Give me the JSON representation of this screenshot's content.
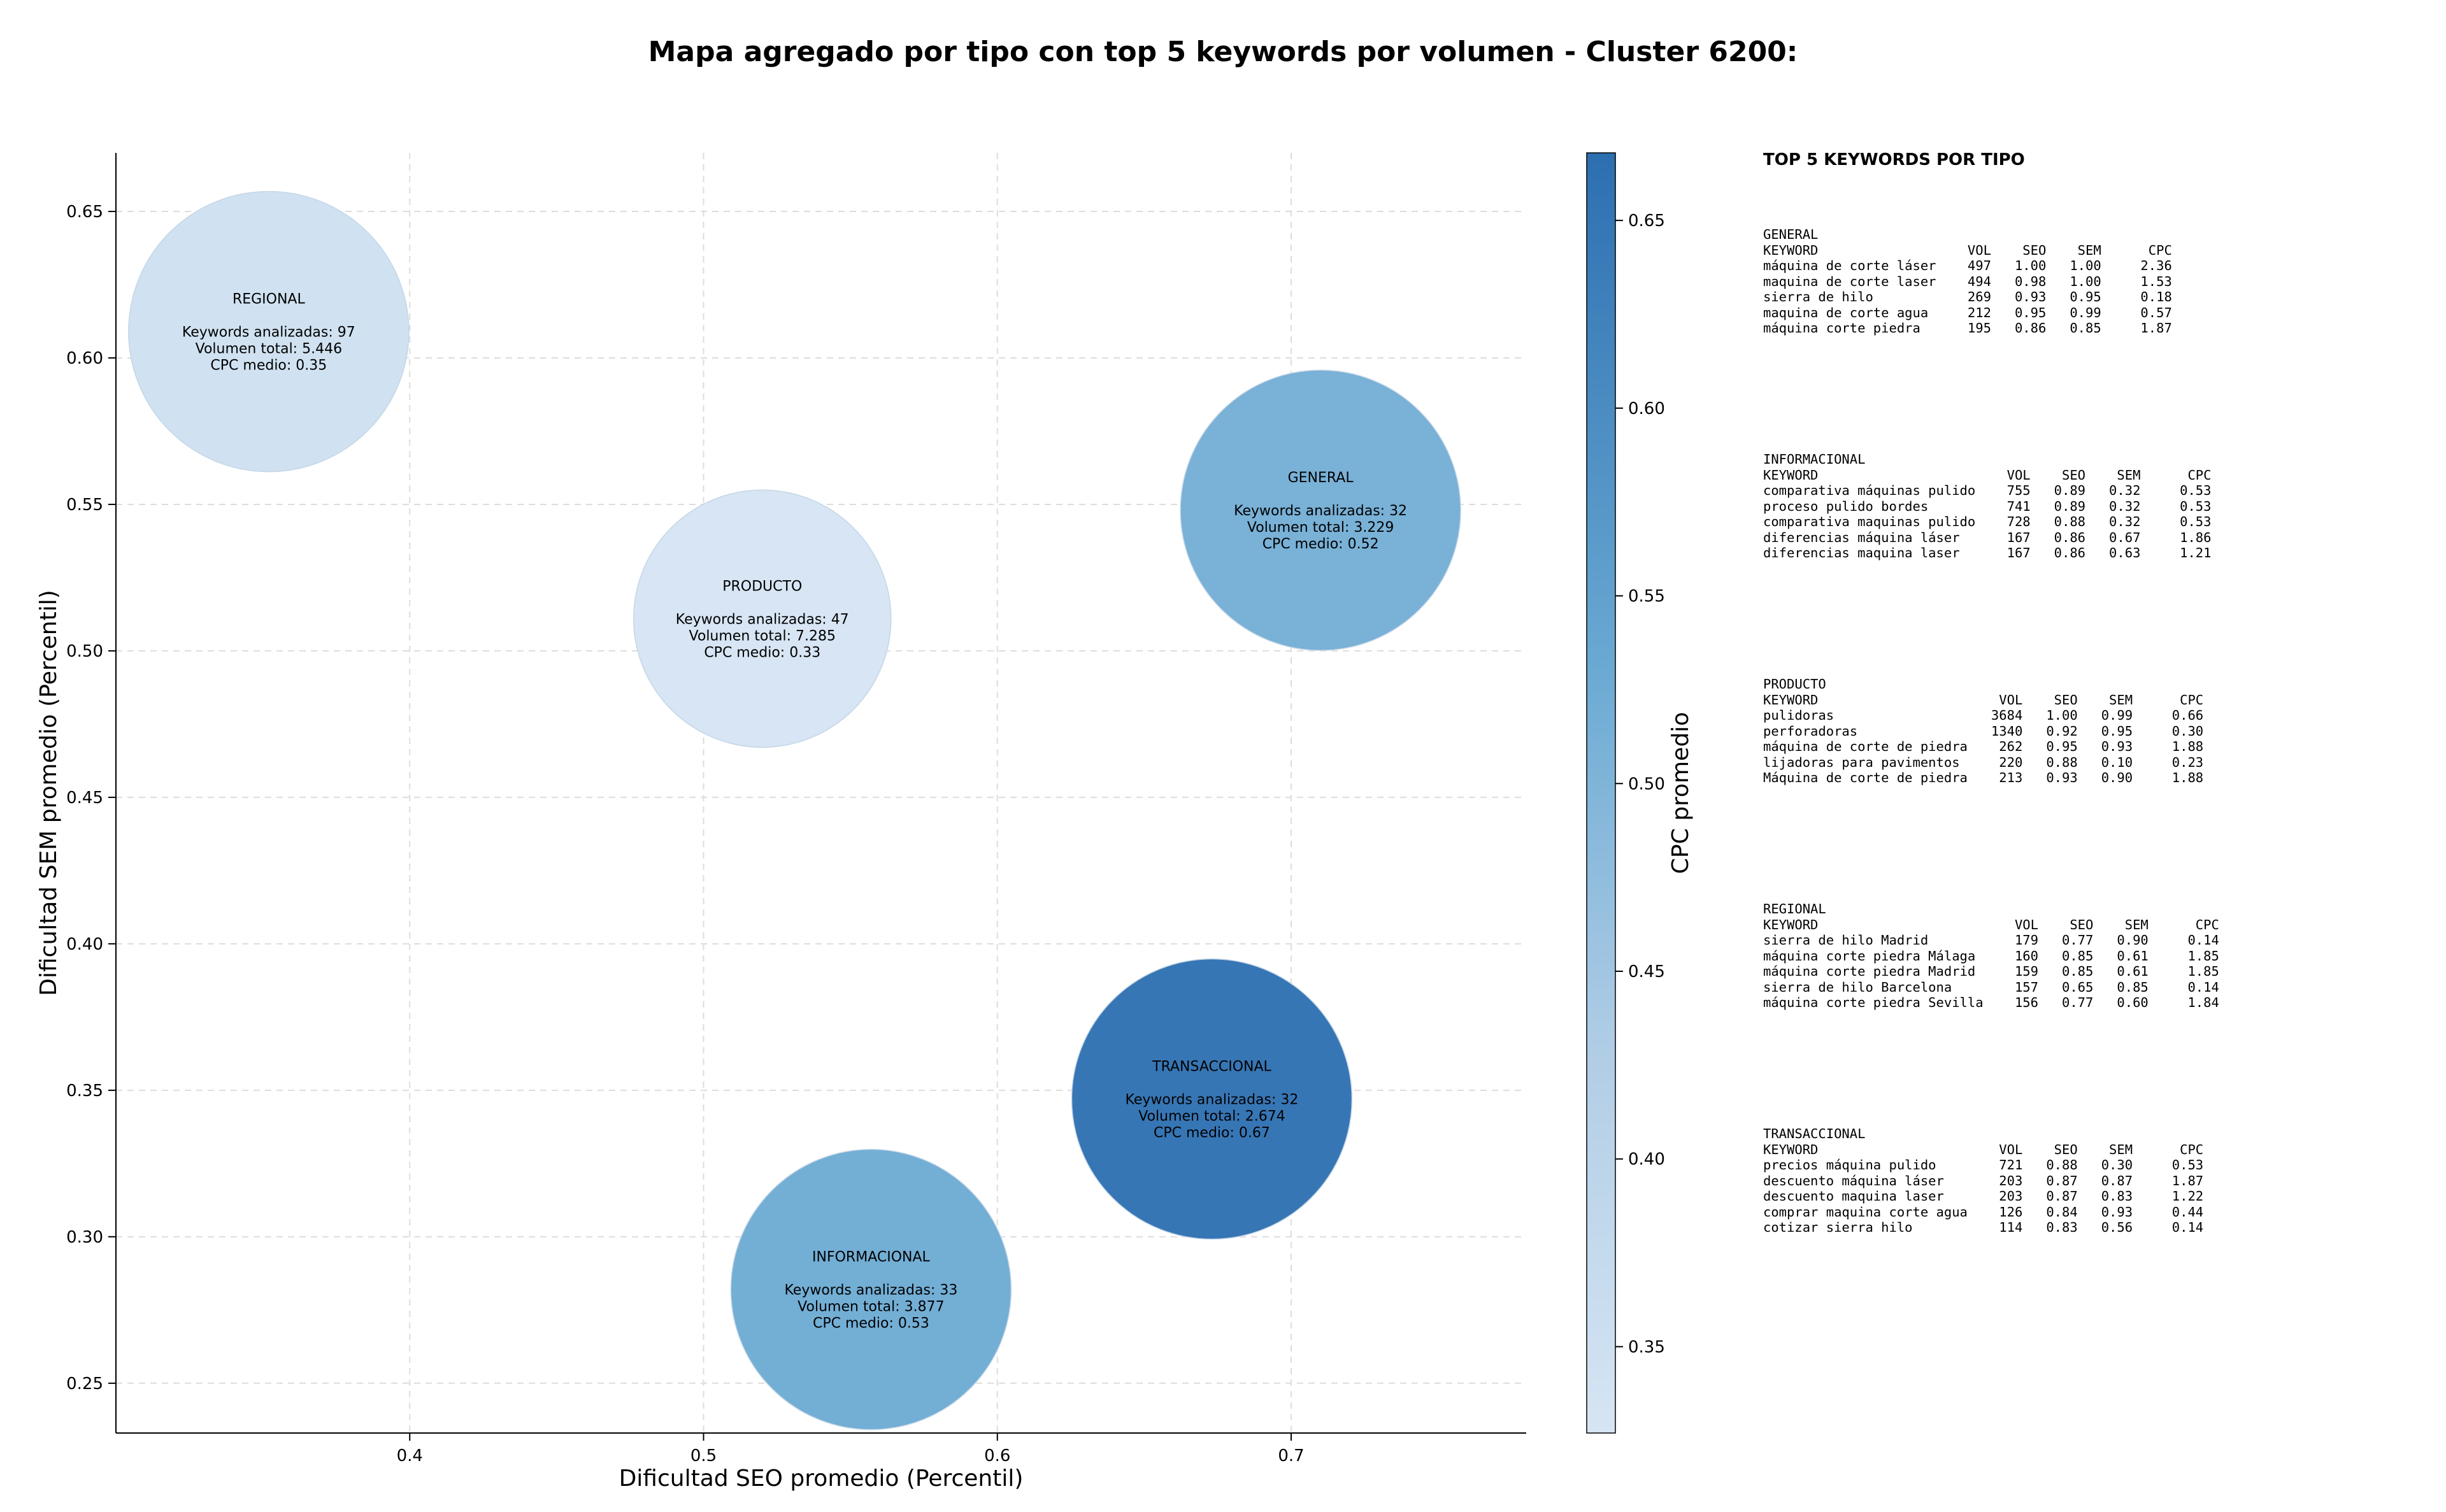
{
  "chart_data": {
    "type": "scatter",
    "title": "Mapa agregado por tipo con top 5 keywords por volumen - Cluster 6200:",
    "xlabel": "Dificultad SEO promedio (Percentil)",
    "ylabel": "Dificultad SEM promedio (Percentil)",
    "xlim": [
      0.3,
      0.78
    ],
    "ylim": [
      0.233,
      0.67
    ],
    "xticks": [
      0.4,
      0.5,
      0.6,
      0.7
    ],
    "xtick_labels": [
      "0.4",
      "0.5",
      "0.6",
      "0.7"
    ],
    "yticks": [
      0.25,
      0.3,
      0.35,
      0.4,
      0.45,
      0.5,
      0.55,
      0.6,
      0.65
    ],
    "ytick_labels": [
      "0.25",
      "0.30",
      "0.35",
      "0.40",
      "0.45",
      "0.50",
      "0.55",
      "0.60",
      "0.65"
    ],
    "grid": true,
    "colorbar": {
      "label": "CPC promedio",
      "range": [
        0.327,
        0.668
      ],
      "ticks": [
        0.35,
        0.4,
        0.45,
        0.5,
        0.55,
        0.6,
        0.65
      ],
      "tick_labels": [
        "0.35",
        "0.40",
        "0.45",
        "0.50",
        "0.55",
        "0.60",
        "0.65"
      ]
    },
    "points": [
      {
        "type": "REGIONAL",
        "x": 0.352,
        "y": 0.609,
        "keywords": 97,
        "volumen": 5446,
        "cpc": 0.35,
        "label_lines": [
          "REGIONAL",
          "",
          "Keywords analizadas: 97",
          "Volumen total: 5.446",
          "CPC medio: 0.35"
        ]
      },
      {
        "type": "PRODUCTO",
        "x": 0.52,
        "y": 0.511,
        "keywords": 47,
        "volumen": 7285,
        "cpc": 0.33,
        "label_lines": [
          "PRODUCTO",
          "",
          "Keywords analizadas: 47",
          "Volumen total: 7.285",
          "CPC medio: 0.33"
        ]
      },
      {
        "type": "GENERAL",
        "x": 0.71,
        "y": 0.548,
        "keywords": 32,
        "volumen": 3229,
        "cpc": 0.52,
        "label_lines": [
          "GENERAL",
          "",
          "Keywords analizadas: 32",
          "Volumen total: 3.229",
          "CPC medio: 0.52"
        ]
      },
      {
        "type": "TRANSACCIONAL",
        "x": 0.673,
        "y": 0.347,
        "keywords": 32,
        "volumen": 2674,
        "cpc": 0.67,
        "label_lines": [
          "TRANSACCIONAL",
          "",
          "Keywords analizadas: 32",
          "Volumen total: 2.674",
          "CPC medio: 0.67"
        ]
      },
      {
        "type": "INFORMACIONAL",
        "x": 0.557,
        "y": 0.282,
        "keywords": 33,
        "volumen": 3877,
        "cpc": 0.53,
        "label_lines": [
          "INFORMACIONAL",
          "",
          "Keywords analizadas: 33",
          "Volumen total: 3.877",
          "CPC medio: 0.53"
        ]
      }
    ]
  },
  "keyword_panel": {
    "title": "TOP 5 KEYWORDS POR TIPO",
    "groups": [
      {
        "name": "GENERAL",
        "lines": [
          "KEYWORD                   VOL    SEO    SEM      CPC",
          "máquina de corte láser    497   1.00   1.00     2.36",
          "maquina de corte laser    494   0.98   1.00     1.53",
          "sierra de hilo            269   0.93   0.95     0.18",
          "maquina de corte agua     212   0.95   0.99     0.57",
          "máquina corte piedra      195   0.86   0.85     1.87"
        ]
      },
      {
        "name": "INFORMACIONAL",
        "lines": [
          "KEYWORD                        VOL    SEO    SEM      CPC",
          "comparativa máquinas pulido    755   0.89   0.32     0.53",
          "proceso pulido bordes          741   0.89   0.32     0.53",
          "comparativa maquinas pulido    728   0.88   0.32     0.53",
          "diferencias máquina láser      167   0.86   0.67     1.86",
          "diferencias maquina laser      167   0.86   0.63     1.21"
        ]
      },
      {
        "name": "PRODUCTO",
        "lines": [
          "KEYWORD                       VOL    SEO    SEM      CPC",
          "pulidoras                    3684   1.00   0.99     0.66",
          "perforadoras                 1340   0.92   0.95     0.30",
          "máquina de corte de piedra    262   0.95   0.93     1.88",
          "lijadoras para pavimentos     220   0.88   0.10     0.23",
          "Máquina de corte de piedra    213   0.93   0.90     1.88"
        ]
      },
      {
        "name": "REGIONAL",
        "lines": [
          "KEYWORD                         VOL    SEO    SEM      CPC",
          "sierra de hilo Madrid           179   0.77   0.90     0.14",
          "máquina corte piedra Málaga     160   0.85   0.61     1.85",
          "máquina corte piedra Madrid     159   0.85   0.61     1.85",
          "sierra de hilo Barcelona        157   0.65   0.85     0.14",
          "máquina corte piedra Sevilla    156   0.77   0.60     1.84"
        ]
      },
      {
        "name": "TRANSACCIONAL",
        "lines": [
          "KEYWORD                       VOL    SEO    SEM      CPC",
          "precios máquina pulido        721   0.88   0.30     0.53",
          "descuento máquina láser       203   0.87   0.87     1.87",
          "descuento maquina laser       203   0.87   0.83     1.22",
          "comprar maquina corte agua    126   0.84   0.93     0.44",
          "cotizar sierra hilo           114   0.83   0.56     0.14"
        ]
      }
    ]
  },
  "colors": {
    "cmap_low": "#cfe0ef",
    "cmap_high": "#2c6fb1",
    "grid": "#dcdcdc",
    "axis": "#000000"
  }
}
